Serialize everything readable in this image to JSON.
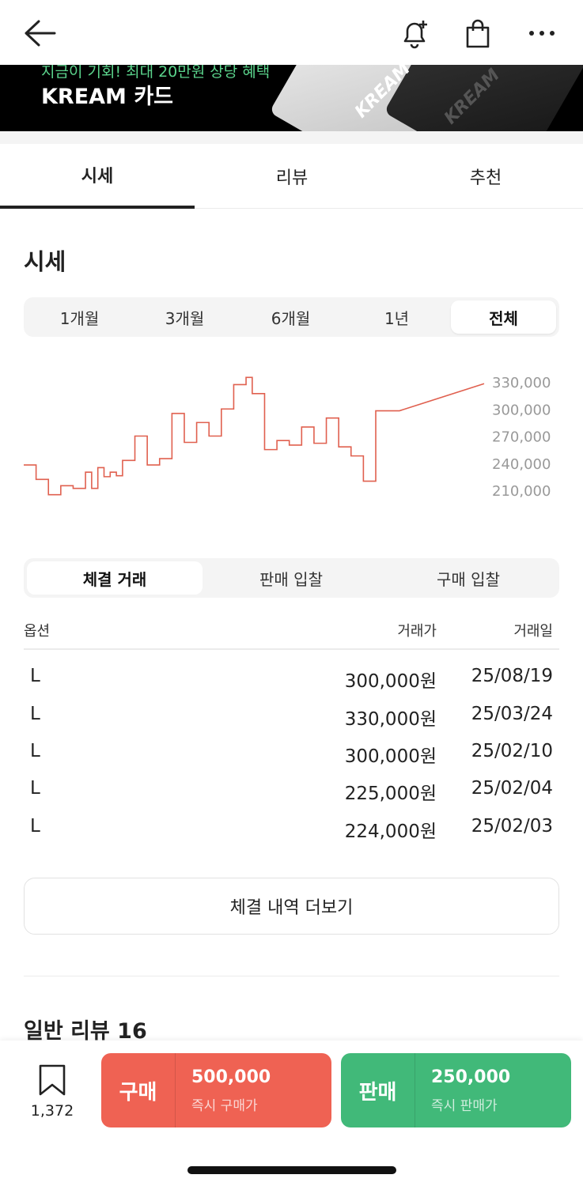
{
  "header": {
    "back_icon": "arrow-left-icon",
    "alert_icon": "bell-plus-icon",
    "bag_icon": "shopping-bag-icon",
    "more_icon": "more-horizontal-icon"
  },
  "banner": {
    "promo": "지금이 기회! 최대 20만원 상당 혜택",
    "title": "KREAM 카드",
    "card_text_1": "KREAM",
    "card_text_2": "KREAM"
  },
  "tabs": [
    "시세",
    "리뷰",
    "추천"
  ],
  "section_title": "시세",
  "periods": [
    "1개월",
    "3개월",
    "6개월",
    "1년",
    "전체"
  ],
  "chart_data": {
    "type": "line",
    "y_ticks": [
      "330,000",
      "300,000",
      "270,000",
      "240,000",
      "210,000"
    ],
    "ylim": [
      210000,
      330000
    ],
    "color": "#e0604f",
    "values": [
      238000,
      238000,
      222000,
      222000,
      205000,
      205000,
      215000,
      215000,
      212000,
      212000,
      230000,
      212000,
      235000,
      225000,
      230000,
      226000,
      243000,
      243000,
      270000,
      270000,
      238000,
      238000,
      245000,
      245000,
      295000,
      295000,
      263000,
      263000,
      285000,
      285000,
      270000,
      270000,
      300000,
      300000,
      327000,
      327000,
      335000,
      317000,
      317000,
      255000,
      255000,
      265000,
      265000,
      260000,
      260000,
      280000,
      280000,
      262000,
      262000,
      290000,
      290000,
      258000,
      258000,
      248000,
      248000,
      220000,
      220000,
      298000,
      298000
    ]
  },
  "trade_tabs": [
    "체결 거래",
    "판매 입찰",
    "구매 입찰"
  ],
  "table": {
    "headers": [
      "옵션",
      "거래가",
      "거래일"
    ],
    "rows": [
      [
        "L",
        "300,000원",
        "25/08/19"
      ],
      [
        "L",
        "330,000원",
        "25/03/24"
      ],
      [
        "L",
        "300,000원",
        "25/02/10"
      ],
      [
        "L",
        "225,000원",
        "25/02/04"
      ],
      [
        "L",
        "224,000원",
        "25/02/03"
      ]
    ]
  },
  "more_button": "체결 내역 더보기",
  "review_title": "일반 리뷰 16",
  "bottom": {
    "bookmark_icon": "bookmark-icon",
    "bookmark_count": "1,372",
    "buy_label": "구매",
    "buy_price": "500,000",
    "buy_sub": "즉시 구매가",
    "sell_label": "판매",
    "sell_price": "250,000",
    "sell_sub": "즉시 판매가"
  },
  "colors": {
    "buy": "#ef6253",
    "sell": "#41b979",
    "promo": "#5bd48c"
  }
}
